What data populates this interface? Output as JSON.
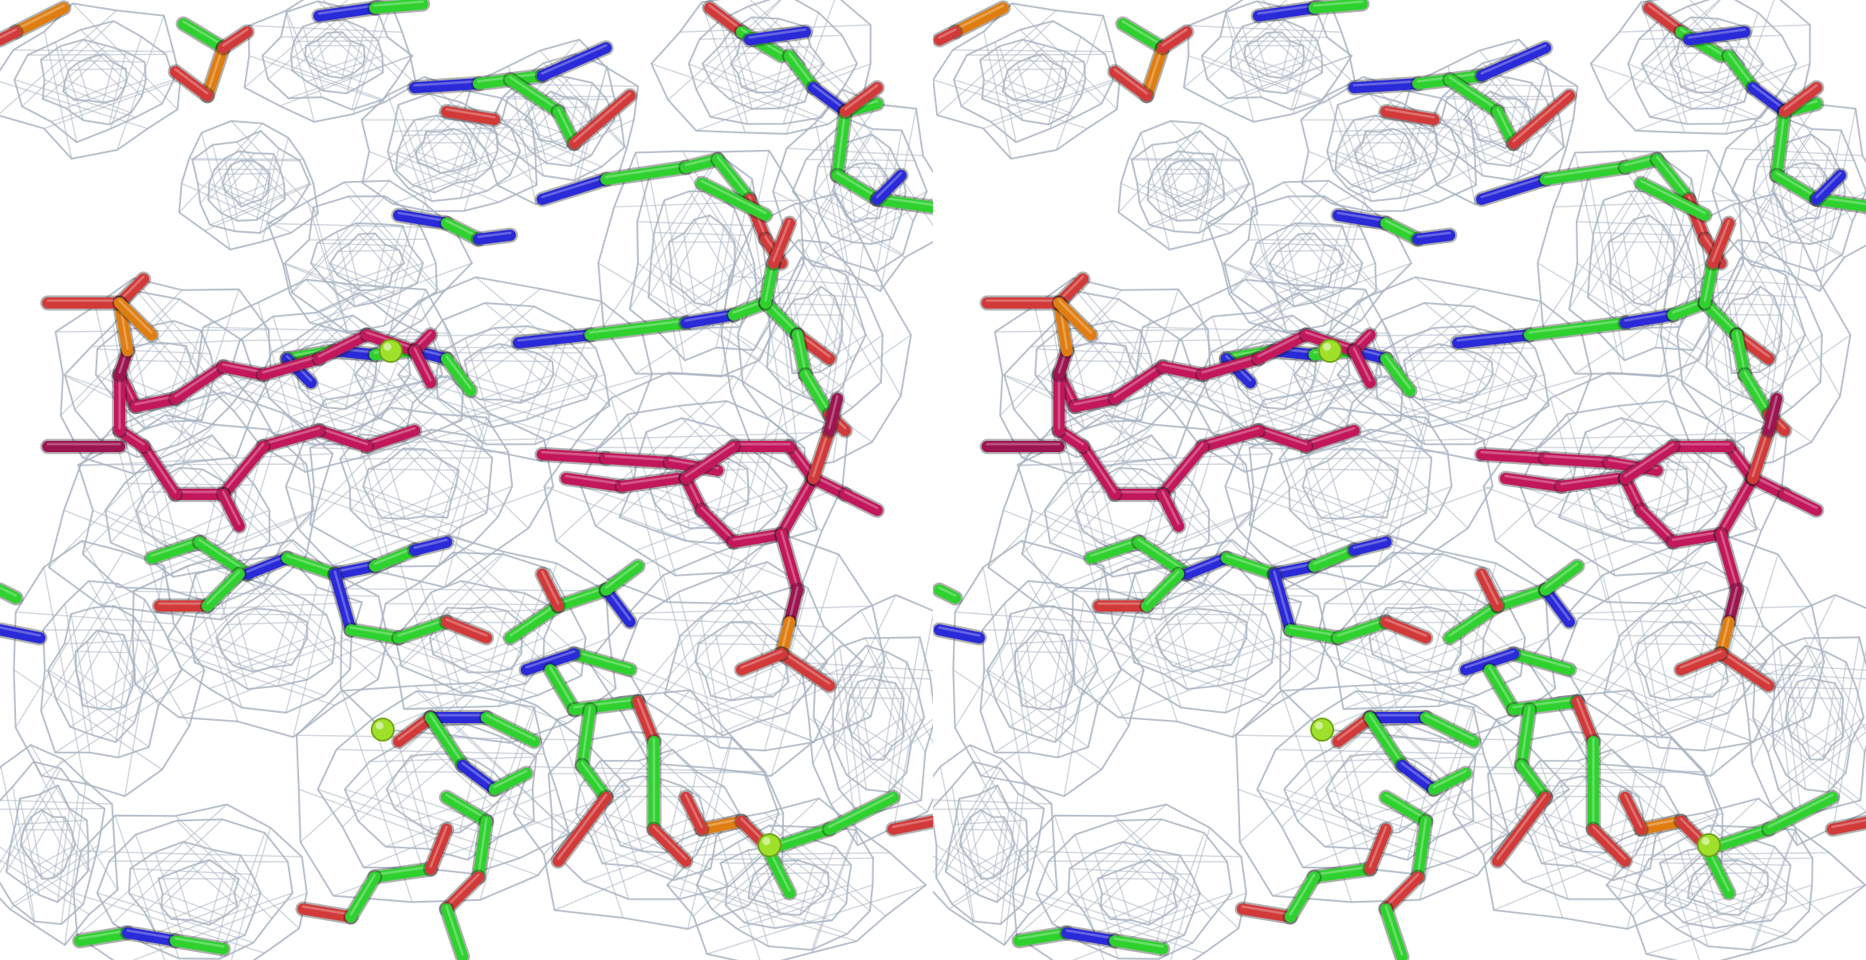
{
  "figure": {
    "description_free": true,
    "layout": "side-by-side",
    "panels": [
      "left-eye",
      "right-eye"
    ]
  },
  "colors": {
    "background": "#ffffff",
    "density_mesh": "#a9b4c2",
    "carbon": "#2fd12f",
    "nitrogen": "#2a2ad8",
    "oxygen": "#d23a3a",
    "phosphorus": "#e07d10",
    "ligand_carbon": "#c2185b",
    "ligand_carbon_dark": "#9c1450",
    "ion": "#9ee02a"
  },
  "icons": {
    "ion": "sphere-icon"
  }
}
